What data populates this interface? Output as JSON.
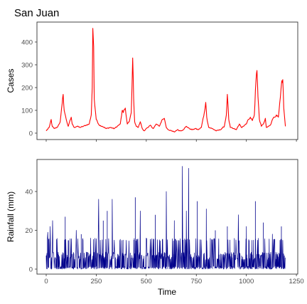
{
  "figure_title": "San Juan",
  "chart_data": [
    {
      "type": "line",
      "title": "San Juan",
      "xlabel": "",
      "ylabel": "Cases",
      "xlim": [
        0,
        1200
      ],
      "ylim": [
        0,
        470
      ],
      "x_ticks": [
        0,
        250,
        500,
        750,
        1000,
        1250
      ],
      "y_ticks": [
        0,
        100,
        200,
        300,
        400
      ],
      "y_tick_labels": [
        "0",
        "100",
        "200",
        "300",
        "400"
      ],
      "grid": false,
      "color": "#ff0000",
      "series": [
        {
          "x": [
            0,
            15,
            25,
            30,
            40,
            55,
            70,
            80,
            85,
            90,
            100,
            110,
            125,
            130,
            140,
            155,
            170,
            185,
            200,
            215,
            225,
            230,
            233,
            237,
            240,
            250,
            265,
            280,
            300,
            320,
            340,
            355,
            370,
            380,
            385,
            395,
            405,
            415,
            425,
            432,
            437,
            442,
            450,
            460,
            470,
            480,
            490,
            500,
            510,
            520,
            535,
            550,
            565,
            580,
            590,
            600,
            610,
            625,
            640,
            655,
            670,
            685,
            700,
            715,
            730,
            745,
            760,
            775,
            790,
            797,
            802,
            812,
            830,
            850,
            870,
            890,
            900,
            905,
            912,
            920,
            935,
            950,
            965,
            975,
            985,
            1000,
            1010,
            1020,
            1030,
            1040,
            1048,
            1053,
            1058,
            1065,
            1075,
            1085,
            1095,
            1100,
            1110,
            1120,
            1130,
            1140,
            1150,
            1160,
            1170,
            1177,
            1182,
            1187,
            1195
          ],
          "y": [
            10,
            25,
            60,
            30,
            20,
            25,
            50,
            130,
            170,
            100,
            60,
            30,
            70,
            40,
            25,
            30,
            25,
            30,
            35,
            40,
            80,
            200,
            460,
            380,
            150,
            60,
            35,
            30,
            20,
            25,
            20,
            30,
            40,
            100,
            90,
            110,
            40,
            50,
            90,
            330,
            150,
            50,
            30,
            25,
            50,
            20,
            10,
            20,
            25,
            35,
            20,
            40,
            30,
            60,
            65,
            25,
            15,
            10,
            5,
            15,
            10,
            15,
            30,
            20,
            15,
            20,
            15,
            25,
            90,
            135,
            70,
            25,
            20,
            10,
            15,
            30,
            80,
            170,
            60,
            25,
            20,
            15,
            40,
            25,
            30,
            40,
            60,
            70,
            55,
            80,
            230,
            275,
            160,
            60,
            30,
            40,
            65,
            25,
            30,
            35,
            60,
            70,
            80,
            70,
            160,
            230,
            235,
            110,
            30
          ]
        }
      ]
    },
    {
      "type": "line",
      "title": "",
      "xlabel": "Time",
      "ylabel": "Rainfall (mm)",
      "xlim": [
        0,
        1200
      ],
      "ylim": [
        0,
        55
      ],
      "x_ticks": [
        0,
        250,
        500,
        750,
        1000,
        1250
      ],
      "x_tick_labels": [
        "0",
        "250",
        "500",
        "750",
        "1000",
        "1250"
      ],
      "y_ticks": [
        0,
        20,
        40
      ],
      "y_tick_labels": [
        "0",
        "20",
        "40"
      ],
      "grid": false,
      "color": "#00008b",
      "spikes": [
        {
          "x": 8,
          "y": 19
        },
        {
          "x": 20,
          "y": 22
        },
        {
          "x": 32,
          "y": 25
        },
        {
          "x": 95,
          "y": 27
        },
        {
          "x": 150,
          "y": 20
        },
        {
          "x": 175,
          "y": 18
        },
        {
          "x": 262,
          "y": 36
        },
        {
          "x": 285,
          "y": 25
        },
        {
          "x": 305,
          "y": 30
        },
        {
          "x": 330,
          "y": 36
        },
        {
          "x": 445,
          "y": 37
        },
        {
          "x": 470,
          "y": 30
        },
        {
          "x": 545,
          "y": 28
        },
        {
          "x": 600,
          "y": 40
        },
        {
          "x": 640,
          "y": 25
        },
        {
          "x": 680,
          "y": 53
        },
        {
          "x": 700,
          "y": 30
        },
        {
          "x": 712,
          "y": 52
        },
        {
          "x": 755,
          "y": 35
        },
        {
          "x": 800,
          "y": 31
        },
        {
          "x": 845,
          "y": 20
        },
        {
          "x": 905,
          "y": 22
        },
        {
          "x": 960,
          "y": 28
        },
        {
          "x": 1000,
          "y": 22
        },
        {
          "x": 1045,
          "y": 35
        },
        {
          "x": 1085,
          "y": 24
        },
        {
          "x": 1130,
          "y": 18
        },
        {
          "x": 1175,
          "y": 22
        }
      ]
    }
  ]
}
